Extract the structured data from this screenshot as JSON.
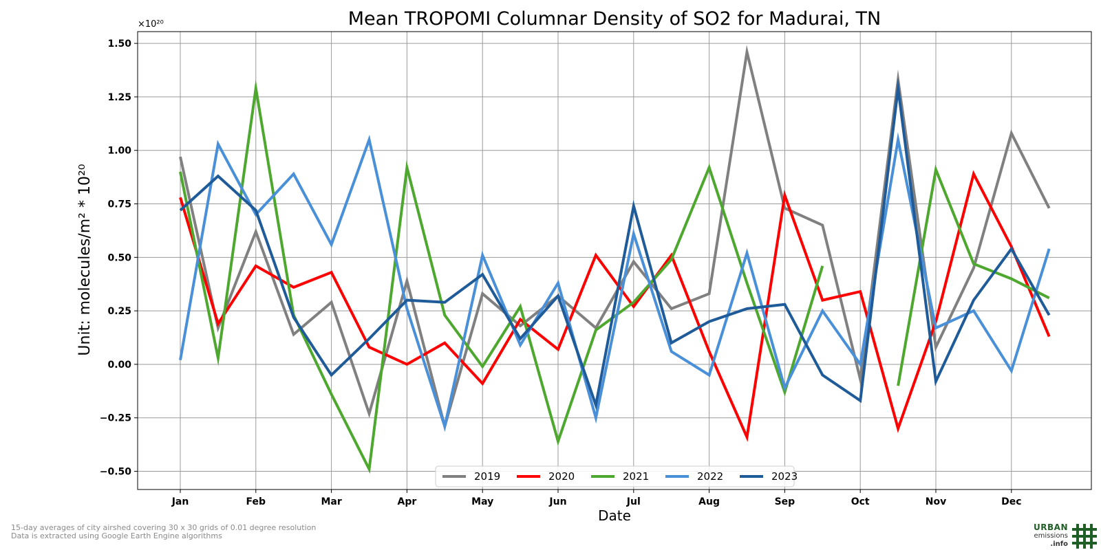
{
  "chart_data": {
    "type": "line",
    "title": "Mean TROPOMI Columnar Density of SO2 for Madurai, TN",
    "xlabel": "Date",
    "ylabel": "Unit: molecules/m² * 10²⁰",
    "y_multiplier": "×10²⁰",
    "ylim": [
      -0.585,
      1.555
    ],
    "yticks": [
      -0.5,
      -0.25,
      0.0,
      0.25,
      0.5,
      0.75,
      1.0,
      1.25,
      1.5
    ],
    "ytick_labels": [
      "−0.50",
      "−0.25",
      "0.00",
      "0.25",
      "0.50",
      "0.75",
      "1.00",
      "1.25",
      "1.50"
    ],
    "xticks": [
      "Jan",
      "Feb",
      "Mar",
      "Apr",
      "May",
      "Jun",
      "Jul",
      "Aug",
      "Sep",
      "Oct",
      "Nov",
      "Dec"
    ],
    "grid": true,
    "legend_position": "bottom-center",
    "series": [
      {
        "name": "2019",
        "color": "#808080",
        "values": [
          0.97,
          0.17,
          0.62,
          0.14,
          0.29,
          -0.23,
          0.39,
          -0.29,
          0.33,
          0.18,
          0.32,
          0.17,
          0.48,
          0.26,
          0.33,
          1.46,
          0.73,
          0.65,
          -0.07,
          1.33,
          0.08,
          0.45,
          1.08,
          0.73
        ]
      },
      {
        "name": "2020",
        "color": "#ff0000",
        "values": [
          0.78,
          0.19,
          0.46,
          0.36,
          0.43,
          0.08,
          0.0,
          0.1,
          -0.09,
          0.21,
          0.07,
          0.51,
          0.27,
          0.51,
          0.06,
          -0.34,
          0.79,
          0.3,
          0.34,
          -0.3,
          0.2,
          0.89,
          0.55,
          0.13
        ]
      },
      {
        "name": "2021",
        "color": "#4ea72e",
        "values": [
          0.9,
          0.03,
          1.29,
          0.23,
          -0.14,
          -0.49,
          0.92,
          0.23,
          -0.01,
          0.27,
          -0.36,
          0.16,
          0.29,
          0.49,
          0.92,
          0.38,
          -0.13,
          0.46,
          null,
          -0.1,
          0.91,
          0.47,
          0.4,
          0.31
        ]
      },
      {
        "name": "2022",
        "color": "#4a90d9",
        "values": [
          0.02,
          1.03,
          0.7,
          0.89,
          0.56,
          1.05,
          0.26,
          -0.29,
          0.51,
          0.09,
          0.38,
          -0.25,
          0.61,
          0.06,
          -0.05,
          0.52,
          -0.11,
          0.25,
          0.0,
          1.05,
          0.17,
          0.25,
          -0.03,
          0.54
        ]
      },
      {
        "name": "2023",
        "color": "#1f5b99",
        "values": [
          0.72,
          0.88,
          0.72,
          0.22,
          -0.05,
          0.12,
          0.3,
          0.29,
          0.42,
          0.12,
          0.32,
          -0.19,
          0.74,
          0.1,
          0.2,
          0.26,
          0.28,
          -0.05,
          -0.17,
          1.29,
          -0.08,
          0.3,
          0.54,
          0.23
        ]
      }
    ]
  },
  "footnotes": {
    "line1": "15-day averages of city airshed covering 30 x 30 grids of 0.01 degree resolution",
    "line2": "Data is extracted using Google Earth Engine algorithms"
  },
  "logo": {
    "line1": "URBAN",
    "line2": "emissions",
    "line3": ".info",
    "color": "#1f5f25"
  }
}
